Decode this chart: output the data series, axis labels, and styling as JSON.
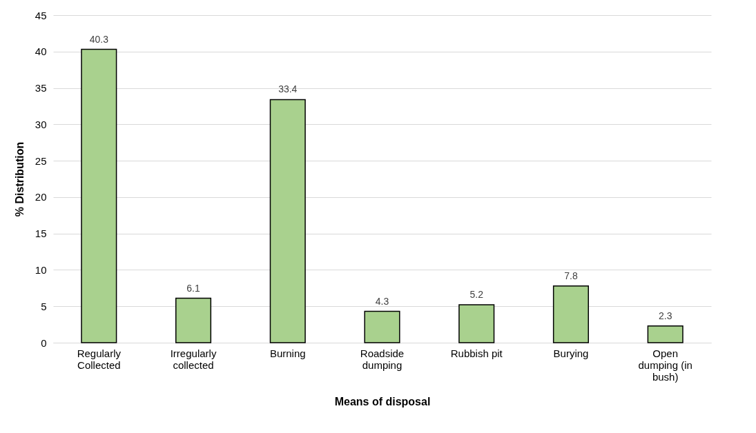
{
  "chart_data": {
    "type": "bar",
    "xlabel": "Means of disposal",
    "ylabel": "% Distribution",
    "categories": [
      "Regularly Collected",
      "Irregularly collected",
      "Burning",
      "Roadside dumping",
      "Rubbish pit",
      "Burying",
      "Open dumping (in bush)"
    ],
    "values": [
      40.3,
      6.1,
      33.4,
      4.3,
      5.2,
      7.8,
      2.3
    ],
    "color": "#a9d18e",
    "ylim": [
      0,
      45
    ],
    "yticks": [
      0,
      5,
      10,
      15,
      20,
      25,
      30,
      35,
      40,
      45
    ],
    "grid": "y",
    "data_labels": true
  }
}
